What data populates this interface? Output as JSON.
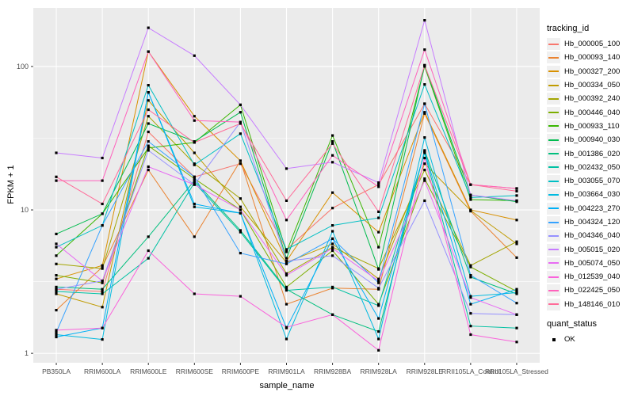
{
  "figure": {
    "y_axis_label": "FPKM + 1",
    "x_axis_label": "sample_name"
  },
  "legend": {
    "tracking_title": "tracking_id",
    "quant_title": "quant_status",
    "quant_items": [
      {
        "label": "OK"
      }
    ]
  },
  "chart_data": {
    "type": "line",
    "title": "",
    "xlabel": "sample_name",
    "ylabel": "FPKM + 1",
    "y_scale": "log10",
    "y_ticks": [
      1,
      10,
      100
    ],
    "y_minor_gridlines": [
      3.162,
      31.62
    ],
    "ylim": [
      0.86,
      256
    ],
    "grid": "on",
    "panel_bg": "#EBEBEB",
    "grid_color": "#FFFFFF",
    "point_shape": "square",
    "point_color": "#000000",
    "legend_position": "right",
    "quant_status": "OK",
    "categories": [
      "PB350LA",
      "RRIM600LA",
      "RRIM600LE",
      "RRIM600SE",
      "RRIM600PE",
      "RRIM901LA",
      "RRIM928BA",
      "RRIM928LA",
      "RRIM928LE",
      "RRII105LA_Control",
      "RRII105LA_Stressed"
    ],
    "series": [
      {
        "name": "Hb_000005_100",
        "color": "#F8766D",
        "values": [
          2.8,
          2.7,
          35,
          17,
          21,
          5.3,
          10.3,
          15,
          55,
          15,
          14.1
        ]
      },
      {
        "name": "Hb_000093_140",
        "color": "#EA8331",
        "values": [
          2.0,
          4.0,
          19,
          6.5,
          22,
          2.2,
          2.85,
          2.8,
          47,
          9.8,
          4.65
        ]
      },
      {
        "name": "Hb_000327_200",
        "color": "#D89000",
        "values": [
          3.3,
          4.1,
          127,
          45,
          22,
          4.4,
          13.2,
          7.0,
          48,
          10,
          8.5
        ]
      },
      {
        "name": "Hb_000334_050",
        "color": "#C09B00",
        "values": [
          2.6,
          2.1,
          58,
          25,
          10.5,
          4.3,
          5.8,
          3.3,
          21,
          9.9,
          5.8
        ]
      },
      {
        "name": "Hb_000392_240",
        "color": "#A3A500",
        "values": [
          4.2,
          3.9,
          45,
          21,
          12,
          3.6,
          5.5,
          3.9,
          19,
          4.1,
          6.0
        ]
      },
      {
        "name": "Hb_000446_040",
        "color": "#7CAE00",
        "values": [
          3.5,
          3.1,
          28,
          16.5,
          10,
          2.9,
          5.2,
          2.2,
          16.5,
          4.0,
          2.7
        ]
      },
      {
        "name": "Hb_000933_110",
        "color": "#39B600",
        "values": [
          4.8,
          9.4,
          27,
          29.5,
          54,
          5.1,
          33,
          5.5,
          100,
          11.8,
          11.6
        ]
      },
      {
        "name": "Hb_000940_030",
        "color": "#00BB4E",
        "values": [
          6.8,
          9.4,
          40,
          30,
          48,
          4.6,
          30,
          3.85,
          102,
          12.7,
          11.4
        ]
      },
      {
        "name": "Hb_001386_020",
        "color": "#00BF7D",
        "values": [
          2.9,
          2.8,
          6.5,
          16,
          7.2,
          2.8,
          1.86,
          1.42,
          26,
          3.4,
          2.6
        ]
      },
      {
        "name": "Hb_002432_050",
        "color": "#00C1A3",
        "values": [
          2.7,
          2.6,
          4.6,
          15.5,
          7.0,
          2.75,
          2.9,
          2.15,
          25,
          1.55,
          1.5
        ]
      },
      {
        "name": "Hb_003055_070",
        "color": "#00BFC4",
        "values": [
          5.5,
          7.8,
          74,
          20.6,
          34,
          5.3,
          7.8,
          8.8,
          75,
          12.2,
          12.6
        ]
      },
      {
        "name": "Hb_003664_030",
        "color": "#00BAE0",
        "values": [
          1.35,
          1.25,
          66,
          10.5,
          9.5,
          1.26,
          7.1,
          1.26,
          32,
          2.5,
          2.65
        ]
      },
      {
        "name": "Hb_004223_270",
        "color": "#00B0F6",
        "values": [
          1.3,
          1.5,
          66,
          11,
          9.5,
          1.5,
          6.3,
          1.75,
          25.5,
          2.2,
          2.8
        ]
      },
      {
        "name": "Hb_004324_120",
        "color": "#35A2FF",
        "values": [
          1.4,
          7.8,
          30,
          17,
          5.0,
          4.2,
          6.3,
          3.1,
          55,
          3.5,
          2.24
        ]
      },
      {
        "name": "Hb_004346_040",
        "color": "#9590FF",
        "values": [
          2.8,
          3.2,
          26,
          15,
          41,
          4.4,
          4.8,
          2.85,
          11.6,
          1.9,
          1.86
        ]
      },
      {
        "name": "Hb_005015_020",
        "color": "#C77CFF",
        "values": [
          25,
          23,
          186,
          119,
          54,
          19.4,
          21.5,
          15.5,
          210,
          12.7,
          11.6
        ]
      },
      {
        "name": "Hb_005074_050",
        "color": "#E76BF3",
        "values": [
          5.8,
          3.2,
          20,
          15,
          10,
          3.5,
          5.4,
          3.2,
          16,
          2.45,
          1.86
        ]
      },
      {
        "name": "Hb_012539_040",
        "color": "#FA62DB",
        "values": [
          1.45,
          1.5,
          5.2,
          2.6,
          2.5,
          1.52,
          1.86,
          1.05,
          23,
          1.35,
          1.2
        ]
      },
      {
        "name": "Hb_022425_050",
        "color": "#FF62BC",
        "values": [
          16,
          16,
          127,
          42,
          41,
          8.5,
          24,
          14.5,
          131,
          15,
          14.1
        ]
      },
      {
        "name": "Hb_148146_010",
        "color": "#FF6A98",
        "values": [
          17,
          11,
          50,
          29.5,
          40,
          11.6,
          29,
          9.7,
          102,
          15,
          13.5
        ]
      }
    ]
  }
}
